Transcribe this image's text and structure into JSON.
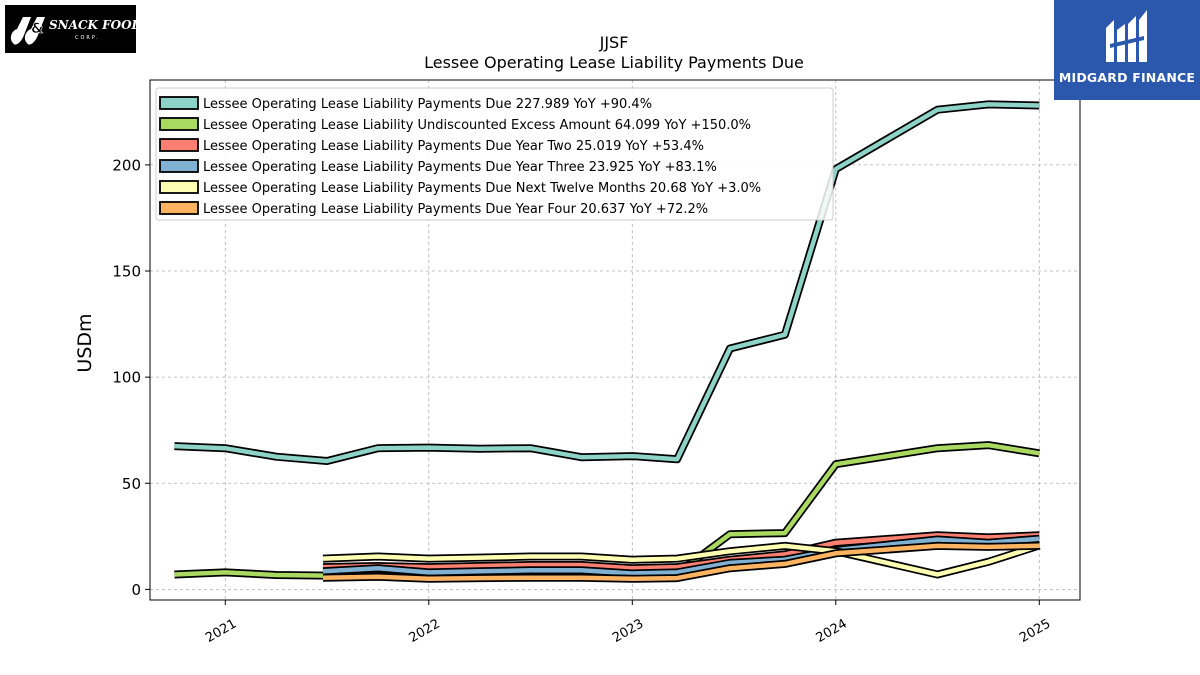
{
  "logos": {
    "left_text": "J&J SNACK FOODS CORP.",
    "right_text": "MIDGARD FINANCE"
  },
  "colors": {
    "background": "#ffffff",
    "grid": "#b0b0b0",
    "outline": "#000000",
    "brand_blue": "#2b58ad"
  },
  "chart_data": {
    "type": "line",
    "title": "JJSF",
    "subtitle": "Lessee Operating Lease Liability Payments Due",
    "ylabel": "USDm",
    "xlabel": "",
    "ylim": [
      -5,
      240
    ],
    "xlim": [
      2020.63,
      2025.2
    ],
    "yticks": [
      0,
      50,
      100,
      150,
      200
    ],
    "xticks": [
      2021,
      2022,
      2023,
      2024,
      2025
    ],
    "xtick_labels": [
      "2021",
      "2022",
      "2023",
      "2024",
      "2025"
    ],
    "grid": true,
    "legend_position": "top-left",
    "series": [
      {
        "name": "Lessee Operating Lease Liability Payments Due",
        "legend": "Lessee Operating Lease Liability Payments Due  227.989 YoY +90.4%",
        "color": "#8dd3c7",
        "x": [
          2020.75,
          2021.0,
          2021.25,
          2021.5,
          2021.75,
          2022.0,
          2022.25,
          2022.5,
          2022.75,
          2023.0,
          2023.22,
          2023.48,
          2023.75,
          2024.0,
          2024.5,
          2024.75,
          2025.0
        ],
        "y": [
          67.5,
          66.5,
          62.5,
          60.5,
          66.5,
          66.8,
          66.3,
          66.5,
          62.3,
          62.8,
          61.3,
          113.5,
          120,
          198,
          226,
          228.5,
          228
        ]
      },
      {
        "name": "Lessee Operating Lease Liability Undiscounted Excess Amount",
        "legend": "Lessee Operating Lease Liability Undiscounted Excess Amount  64.099 YoY +150.0%",
        "color": "#a9d961",
        "x": [
          2020.75,
          2021.0,
          2021.25,
          2021.5,
          2021.75,
          2022.0,
          2022.25,
          2022.5,
          2022.75,
          2023.0,
          2023.22,
          2023.48,
          2023.75,
          2024.0,
          2024.5,
          2024.75,
          2025.0
        ],
        "y": [
          7,
          8,
          6.8,
          6.5,
          6.5,
          6.5,
          6.5,
          6.5,
          6.5,
          6.5,
          7.5,
          26,
          26.5,
          59,
          66.5,
          68,
          64.1
        ]
      },
      {
        "name": "Lessee Operating Lease Liability Payments Due Year Two",
        "legend": "Lessee Operating Lease Liability Payments Due Year Two  25.019 YoY +53.4%",
        "color": "#fb8072",
        "x": [
          2021.48,
          2021.75,
          2022.0,
          2022.25,
          2022.5,
          2022.75,
          2023.0,
          2023.22,
          2023.48,
          2023.75,
          2024.0,
          2024.5,
          2024.75,
          2025.0
        ],
        "y": [
          10.5,
          11,
          10.5,
          11,
          11.5,
          11.5,
          10,
          10.5,
          14,
          16.5,
          22,
          25.5,
          24.5,
          25.5
        ]
      },
      {
        "name": "Lessee Operating Lease Liability Payments Due Year Three",
        "legend": "Lessee Operating Lease Liability Payments Due Year Three  23.925 YoY +83.1%",
        "color": "#80b1d3",
        "x": [
          2021.48,
          2021.75,
          2022.0,
          2022.25,
          2022.5,
          2022.75,
          2023.0,
          2023.22,
          2023.48,
          2023.75,
          2024.0,
          2024.5,
          2024.75,
          2025.0
        ],
        "y": [
          8.5,
          10,
          8,
          8.5,
          9,
          9,
          7.5,
          8,
          12.5,
          14,
          18.5,
          23.5,
          22,
          23.9
        ]
      },
      {
        "name": "Lessee Operating Lease Liability Payments Due Next Twelve Months",
        "legend": "Lessee Operating Lease Liability Payments Due Next Twelve Months  20.68 YoY +3.0%",
        "color": "#ffffb3",
        "x": [
          2021.48,
          2021.75,
          2022.0,
          2022.25,
          2022.5,
          2022.75,
          2023.0,
          2023.22,
          2023.48,
          2023.75,
          2024.0,
          2024.5,
          2024.75,
          2025.0
        ],
        "y": [
          14.5,
          15.5,
          14.5,
          15,
          15.5,
          15.5,
          14,
          14.5,
          18,
          20.5,
          18,
          7,
          13,
          20.7
        ]
      },
      {
        "name": "Lessee Operating Lease Liability Payments Due Year Four",
        "legend": "Lessee Operating Lease Liability Payments Due Year Four  20.637 YoY +72.2%",
        "color": "#fdb462",
        "x": [
          2021.48,
          2021.75,
          2022.0,
          2022.25,
          2022.5,
          2022.75,
          2023.0,
          2023.22,
          2023.48,
          2023.75,
          2024.0,
          2024.5,
          2024.75,
          2025.0
        ],
        "y": [
          5.5,
          6,
          5,
          5.3,
          5.5,
          5.5,
          5,
          5.3,
          10,
          12,
          17,
          20.5,
          20,
          20.6
        ]
      }
    ]
  }
}
